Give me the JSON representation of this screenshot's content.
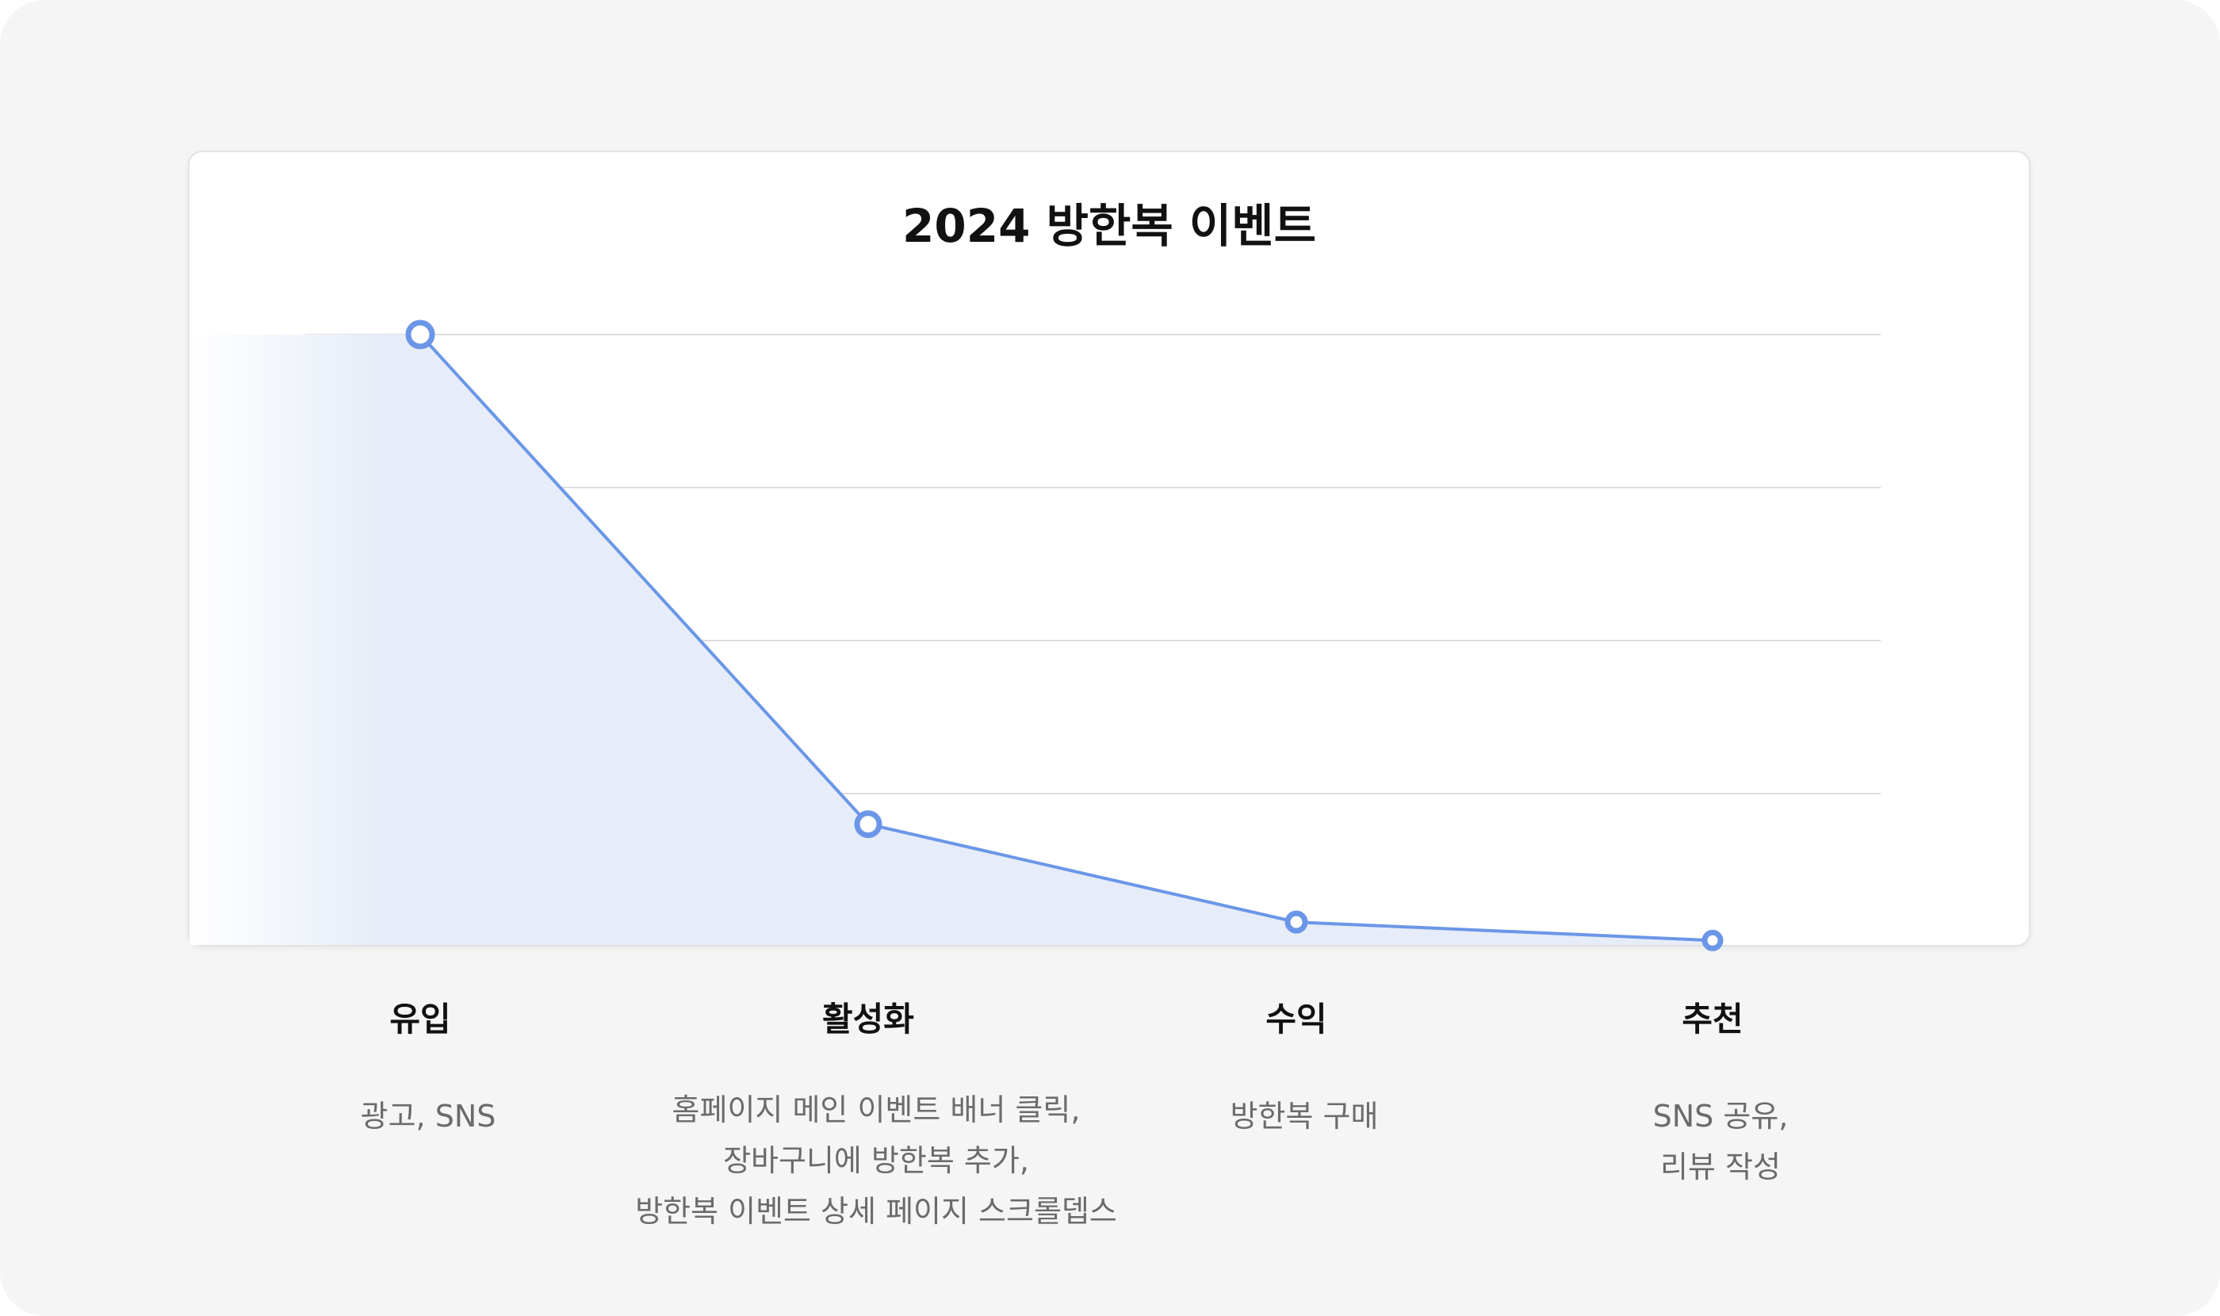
{
  "chart_data": {
    "type": "area",
    "title": "2024 방한복 이벤트",
    "xlabel": "",
    "ylabel": "",
    "categories": [
      "유입",
      "활성화",
      "수익",
      "추천"
    ],
    "values": [
      100,
      20,
      4,
      1
    ],
    "ylim": [
      0,
      100
    ],
    "grid": true,
    "series": [
      {
        "values": [
          100,
          20,
          4,
          1
        ]
      }
    ],
    "stage_details": [
      {
        "label": "유입",
        "description": "광고, SNS"
      },
      {
        "label": "활성화",
        "description": "홈페이지 메인 이벤트 배너 클릭,\n장바구니에 방한복 추가,\n방한복 이벤트 상세 페이지 스크롤뎁스"
      },
      {
        "label": "수익",
        "description": "방한복 구매"
      },
      {
        "label": "추천",
        "description": "SNS 공유,\n리뷰 작성"
      }
    ],
    "colors": {
      "line": "#6b96e8",
      "area": "#e6edf8",
      "marker_stroke": "#6b96e8",
      "marker_fill": "#ffffff",
      "grid": "#dddddd"
    }
  }
}
